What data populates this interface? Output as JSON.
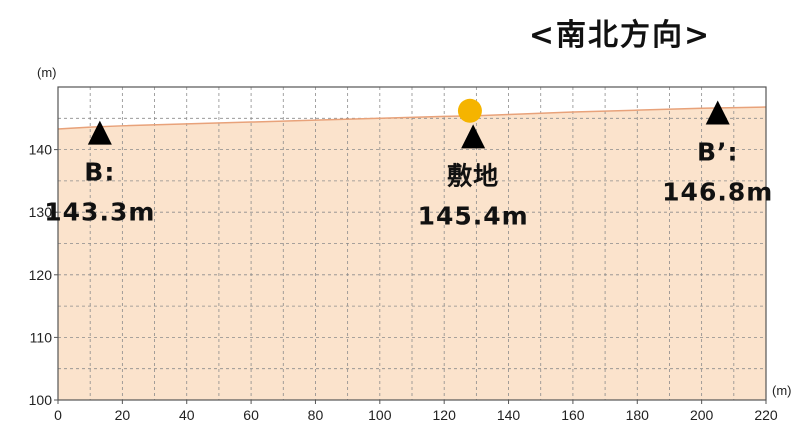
{
  "chart_data": {
    "type": "area",
    "title": "<南北方向>",
    "x_unit": "(m)",
    "y_unit": "(m)",
    "xlim": [
      0,
      220
    ],
    "ylim": [
      100,
      150
    ],
    "x_ticks": [
      0,
      20,
      40,
      60,
      80,
      100,
      120,
      140,
      160,
      180,
      200,
      220
    ],
    "y_ticks": [
      100,
      110,
      120,
      130,
      140
    ],
    "grid": true,
    "colors": {
      "fill": "#fbe3cc",
      "line": "#e8a27a",
      "marker": "#f5b400",
      "grid": "#8c8c8c"
    },
    "x": [
      0,
      10,
      20,
      40,
      60,
      80,
      100,
      120,
      130,
      140,
      160,
      180,
      200,
      220
    ],
    "y": [
      143.3,
      143.6,
      143.8,
      144.1,
      144.4,
      144.7,
      145.0,
      145.3,
      145.4,
      145.6,
      146.0,
      146.3,
      146.6,
      146.8
    ],
    "marker": {
      "x": 128,
      "y": 146.2
    },
    "annotations": [
      {
        "label": "B:",
        "value": "143.3m",
        "x": 13,
        "anchor_y": 140.8
      },
      {
        "label": "敷地",
        "value": "145.4m",
        "x": 129,
        "anchor_y": 140.2
      },
      {
        "label": "B’:",
        "value": "146.8m",
        "x": 205,
        "anchor_y": 144.0
      }
    ]
  }
}
